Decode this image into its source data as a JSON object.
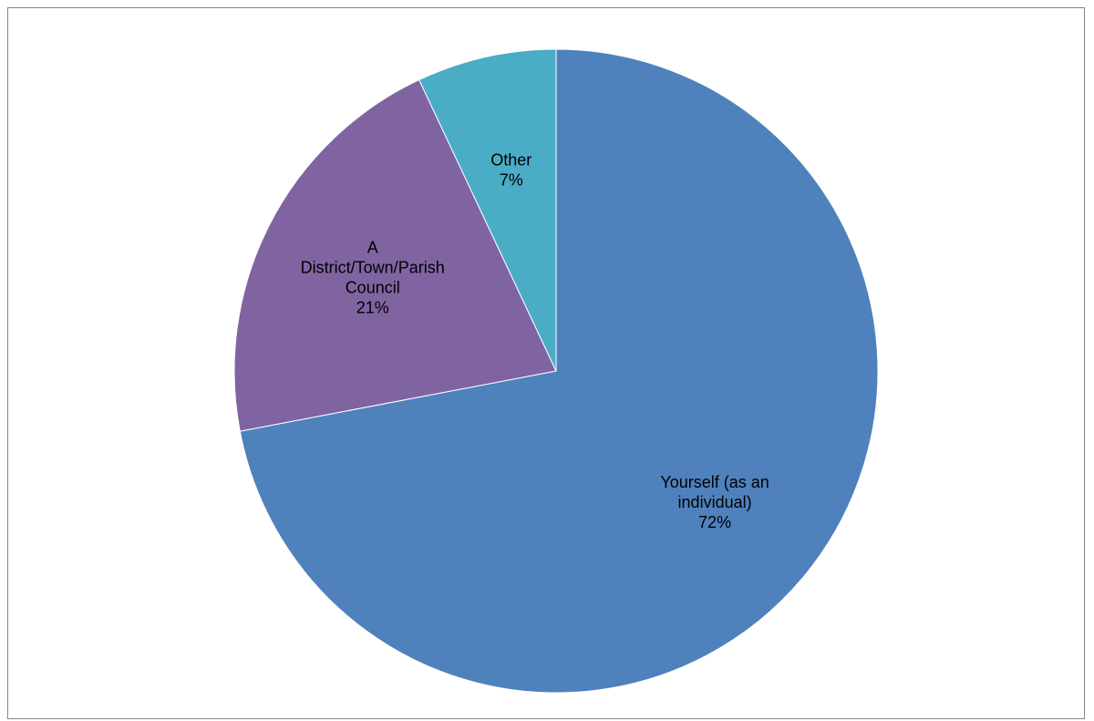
{
  "chart_data": {
    "type": "pie",
    "title": "",
    "start_angle_deg": 0,
    "direction": "clockwise",
    "legend": "none",
    "slices": [
      {
        "label_lines": [
          "Yourself (as an",
          "individual)"
        ],
        "value": 72,
        "value_label": "72%",
        "color": "#4F81BD"
      },
      {
        "label_lines": [
          "A",
          "District/Town/Parish",
          "Council"
        ],
        "value": 21,
        "value_label": "21%",
        "color": "#8064A2"
      },
      {
        "label_lines": [
          "Other"
        ],
        "value": 7,
        "value_label": "7%",
        "color": "#4BACC6"
      }
    ]
  }
}
